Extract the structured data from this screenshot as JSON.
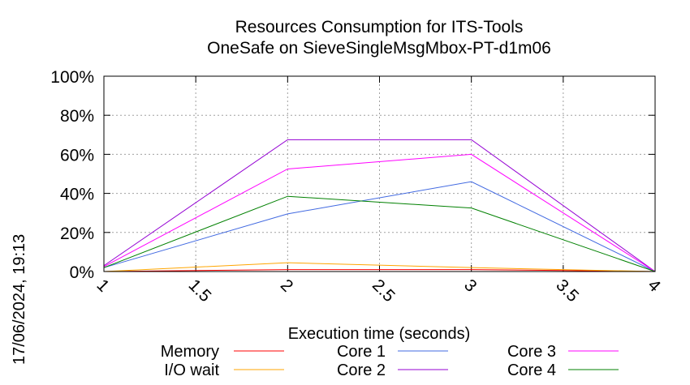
{
  "chart_data": {
    "type": "line",
    "title": [
      "Resources Consumption for ITS-Tools",
      "OneSafe on SieveSingleMsgMbox-PT-d1m06"
    ],
    "xlabel": "Execution time (seconds)",
    "ylabel": "",
    "xlim": [
      1,
      4
    ],
    "ylim": [
      0,
      100
    ],
    "x_ticks": [
      "1",
      "1.5",
      "2",
      "2.5",
      "3",
      "3.5",
      "4"
    ],
    "y_ticks": [
      "0%",
      "20%",
      "40%",
      "60%",
      "80%",
      "100%"
    ],
    "grid": true,
    "legend_position": "bottom",
    "timestamp": "17/06/2024, 19:13",
    "x": [
      1,
      2,
      3,
      4
    ],
    "series": [
      {
        "name": "Memory",
        "color": "#ff0000",
        "values": [
          0,
          1,
          1,
          0
        ]
      },
      {
        "name": "I/O wait",
        "color": "#ffa500",
        "values": [
          0,
          4.5,
          2,
          0
        ]
      },
      {
        "name": "Core 1",
        "color": "#4169e1",
        "values": [
          2,
          29.5,
          46,
          0
        ]
      },
      {
        "name": "Core 2",
        "color": "#9400d3",
        "values": [
          3,
          67.5,
          67.5,
          0
        ]
      },
      {
        "name": "Core 3",
        "color": "#ff00ff",
        "values": [
          2.5,
          52.5,
          60,
          0
        ]
      },
      {
        "name": "Core 4",
        "color": "#008000",
        "values": [
          2,
          38.5,
          32.5,
          0
        ]
      }
    ]
  }
}
